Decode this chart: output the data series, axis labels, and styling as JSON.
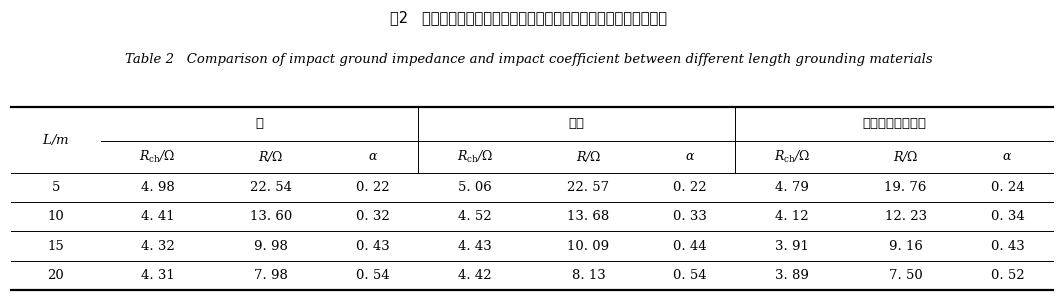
{
  "title_cn": "表2   不同长度接地材料在不同长度下的冲击接地阻抗及冲击系数对比",
  "title_en": "Table 2   Comparison of impact ground impedance and impact coefficient between different length grounding materials",
  "col_groups": [
    "铜",
    "圆钢",
    "石墨复合接地材料"
  ],
  "sub_headers_display": [
    "$R_{ch}$∕Ω",
    "$R$∕Ω",
    "α",
    "$R_{ch}$∕Ω",
    "$R$∕Ω",
    "α",
    "$R_{ch}$∕Ω",
    "$R$∕Ω",
    "α"
  ],
  "rows": [
    [
      "5",
      "4. 98",
      "22. 54",
      "0. 22",
      "5. 06",
      "22. 57",
      "0. 22",
      "4. 79",
      "19. 76",
      "0. 24"
    ],
    [
      "10",
      "4. 41",
      "13. 60",
      "0. 32",
      "4. 52",
      "13. 68",
      "0. 33",
      "4. 12",
      "12. 23",
      "0. 34"
    ],
    [
      "15",
      "4. 32",
      "9. 98",
      "0. 43",
      "4. 43",
      "10. 09",
      "0. 44",
      "3. 91",
      "9. 16",
      "0. 43"
    ],
    [
      "20",
      "4. 31",
      "7. 98",
      "0. 54",
      "4. 42",
      "8. 13",
      "0. 54",
      "3. 89",
      "7. 50",
      "0. 52"
    ]
  ],
  "bg_color": "#ffffff",
  "text_color": "#000000",
  "line_color": "#000000",
  "title_cn_fontsize": 10.5,
  "title_en_fontsize": 9.5,
  "header_fontsize": 9.5,
  "data_fontsize": 9.5,
  "figsize": [
    10.58,
    2.96
  ],
  "dpi": 100
}
